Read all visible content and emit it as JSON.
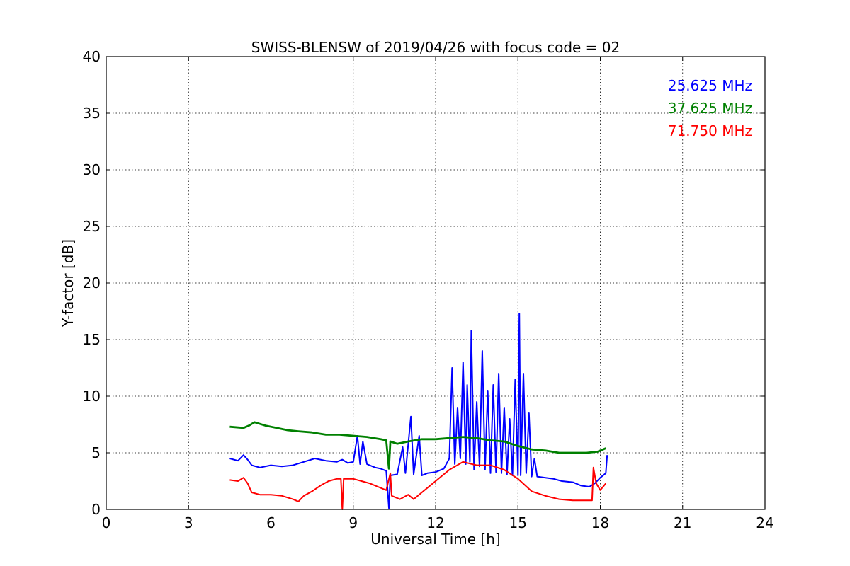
{
  "chart_data": {
    "type": "line",
    "title": "SWISS-BLENSW of 2019/04/26 with focus code = 02",
    "xlabel": "Universal Time [h]",
    "ylabel": "Y-factor [dB]",
    "xlim": [
      0,
      24
    ],
    "ylim": [
      0,
      40
    ],
    "xticks": [
      0,
      3,
      6,
      9,
      12,
      15,
      18,
      21,
      24
    ],
    "yticks": [
      0,
      5,
      10,
      15,
      20,
      25,
      30,
      35,
      40
    ],
    "xtick_labels": [
      "0",
      "3",
      "6",
      "9",
      "12",
      "15",
      "18",
      "21",
      "24"
    ],
    "ytick_labels": [
      "0",
      "5",
      "10",
      "15",
      "20",
      "25",
      "30",
      "35",
      "40"
    ],
    "grid": true,
    "legend_position": "top-right",
    "series": [
      {
        "name": "25.625 MHz",
        "color": "#0000ff",
        "points": [
          [
            4.5,
            4.5
          ],
          [
            4.8,
            4.3
          ],
          [
            5.0,
            4.8
          ],
          [
            5.15,
            4.4
          ],
          [
            5.3,
            3.9
          ],
          [
            5.6,
            3.7
          ],
          [
            6.0,
            3.9
          ],
          [
            6.4,
            3.8
          ],
          [
            6.8,
            3.9
          ],
          [
            7.2,
            4.2
          ],
          [
            7.6,
            4.5
          ],
          [
            8.0,
            4.3
          ],
          [
            8.4,
            4.2
          ],
          [
            8.6,
            4.4
          ],
          [
            8.8,
            4.1
          ],
          [
            9.0,
            4.2
          ],
          [
            9.15,
            6.5
          ],
          [
            9.25,
            4.0
          ],
          [
            9.35,
            6.0
          ],
          [
            9.5,
            4.0
          ],
          [
            9.8,
            3.7
          ],
          [
            10.0,
            3.6
          ],
          [
            10.2,
            3.4
          ],
          [
            10.3,
            0.1
          ],
          [
            10.35,
            3.0
          ],
          [
            10.6,
            3.1
          ],
          [
            10.8,
            5.5
          ],
          [
            10.9,
            3.2
          ],
          [
            11.1,
            8.2
          ],
          [
            11.2,
            3.1
          ],
          [
            11.4,
            6.5
          ],
          [
            11.5,
            3.0
          ],
          [
            11.7,
            3.2
          ],
          [
            12.0,
            3.3
          ],
          [
            12.3,
            3.6
          ],
          [
            12.5,
            4.5
          ],
          [
            12.6,
            12.5
          ],
          [
            12.7,
            4.0
          ],
          [
            12.8,
            9.0
          ],
          [
            12.9,
            4.5
          ],
          [
            13.0,
            13.0
          ],
          [
            13.1,
            4.0
          ],
          [
            13.15,
            11.0
          ],
          [
            13.25,
            4.2
          ],
          [
            13.3,
            15.8
          ],
          [
            13.4,
            3.5
          ],
          [
            13.5,
            9.5
          ],
          [
            13.6,
            3.8
          ],
          [
            13.7,
            14.0
          ],
          [
            13.8,
            3.5
          ],
          [
            13.9,
            10.5
          ],
          [
            14.0,
            3.2
          ],
          [
            14.1,
            11.0
          ],
          [
            14.2,
            3.3
          ],
          [
            14.3,
            12.0
          ],
          [
            14.4,
            3.2
          ],
          [
            14.5,
            9.0
          ],
          [
            14.6,
            3.1
          ],
          [
            14.7,
            8.0
          ],
          [
            14.8,
            3.0
          ],
          [
            14.9,
            11.5
          ],
          [
            15.0,
            3.0
          ],
          [
            15.05,
            17.3
          ],
          [
            15.1,
            3.0
          ],
          [
            15.2,
            12.0
          ],
          [
            15.3,
            3.2
          ],
          [
            15.4,
            8.5
          ],
          [
            15.5,
            2.9
          ],
          [
            15.6,
            4.5
          ],
          [
            15.7,
            2.9
          ],
          [
            16.0,
            2.8
          ],
          [
            16.3,
            2.7
          ],
          [
            16.6,
            2.5
          ],
          [
            17.0,
            2.4
          ],
          [
            17.3,
            2.1
          ],
          [
            17.6,
            2.0
          ],
          [
            17.8,
            2.3
          ],
          [
            18.0,
            2.8
          ],
          [
            18.2,
            3.2
          ],
          [
            18.25,
            4.8
          ]
        ]
      },
      {
        "name": "37.625 MHz",
        "color": "#008000",
        "points": [
          [
            4.5,
            7.3
          ],
          [
            5.0,
            7.2
          ],
          [
            5.2,
            7.4
          ],
          [
            5.4,
            7.7
          ],
          [
            5.8,
            7.4
          ],
          [
            6.2,
            7.2
          ],
          [
            6.6,
            7.0
          ],
          [
            7.0,
            6.9
          ],
          [
            7.5,
            6.8
          ],
          [
            8.0,
            6.6
          ],
          [
            8.5,
            6.6
          ],
          [
            9.0,
            6.5
          ],
          [
            9.5,
            6.4
          ],
          [
            10.0,
            6.2
          ],
          [
            10.2,
            6.1
          ],
          [
            10.3,
            3.6
          ],
          [
            10.35,
            6.0
          ],
          [
            10.6,
            5.8
          ],
          [
            11.0,
            6.0
          ],
          [
            11.5,
            6.2
          ],
          [
            12.0,
            6.2
          ],
          [
            12.5,
            6.3
          ],
          [
            13.0,
            6.4
          ],
          [
            13.5,
            6.3
          ],
          [
            14.0,
            6.1
          ],
          [
            14.5,
            6.0
          ],
          [
            15.0,
            5.6
          ],
          [
            15.5,
            5.3
          ],
          [
            16.0,
            5.2
          ],
          [
            16.5,
            5.0
          ],
          [
            17.0,
            5.0
          ],
          [
            17.5,
            5.0
          ],
          [
            17.9,
            5.1
          ],
          [
            18.2,
            5.4
          ]
        ]
      },
      {
        "name": "71.750 MHz",
        "color": "#ff0000",
        "points": [
          [
            4.5,
            2.6
          ],
          [
            4.8,
            2.5
          ],
          [
            5.0,
            2.8
          ],
          [
            5.15,
            2.3
          ],
          [
            5.3,
            1.5
          ],
          [
            5.6,
            1.3
          ],
          [
            6.0,
            1.3
          ],
          [
            6.4,
            1.2
          ],
          [
            6.8,
            0.9
          ],
          [
            7.0,
            0.7
          ],
          [
            7.2,
            1.2
          ],
          [
            7.5,
            1.6
          ],
          [
            7.8,
            2.1
          ],
          [
            8.1,
            2.5
          ],
          [
            8.4,
            2.7
          ],
          [
            8.55,
            2.7
          ],
          [
            8.6,
            0.0
          ],
          [
            8.65,
            2.7
          ],
          [
            8.8,
            2.7
          ],
          [
            9.0,
            2.7
          ],
          [
            9.3,
            2.5
          ],
          [
            9.6,
            2.3
          ],
          [
            9.9,
            2.0
          ],
          [
            10.2,
            1.7
          ],
          [
            10.35,
            3.2
          ],
          [
            10.4,
            1.2
          ],
          [
            10.7,
            0.9
          ],
          [
            11.0,
            1.3
          ],
          [
            11.2,
            0.9
          ],
          [
            11.5,
            1.5
          ],
          [
            12.0,
            2.5
          ],
          [
            12.5,
            3.5
          ],
          [
            13.0,
            4.2
          ],
          [
            13.5,
            3.9
          ],
          [
            14.0,
            3.9
          ],
          [
            14.5,
            3.5
          ],
          [
            15.0,
            2.7
          ],
          [
            15.5,
            1.6
          ],
          [
            16.0,
            1.2
          ],
          [
            16.5,
            0.9
          ],
          [
            17.0,
            0.8
          ],
          [
            17.5,
            0.8
          ],
          [
            17.7,
            0.8
          ],
          [
            17.75,
            3.7
          ],
          [
            17.85,
            2.3
          ],
          [
            18.0,
            1.7
          ],
          [
            18.2,
            2.3
          ]
        ]
      }
    ]
  }
}
